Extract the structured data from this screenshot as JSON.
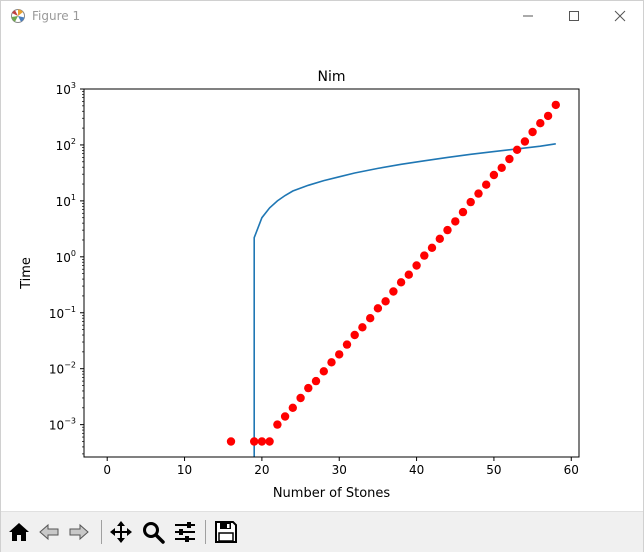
{
  "window": {
    "title": "Figure 1",
    "icons": [
      "matplotlib-logo-icon",
      "minimize-icon",
      "maximize-icon",
      "close-icon"
    ]
  },
  "toolbar": {
    "buttons": [
      {
        "name": "home-button",
        "icon": "home-icon"
      },
      {
        "name": "back-button",
        "icon": "back-arrow-icon"
      },
      {
        "name": "forward-button",
        "icon": "forward-arrow-icon"
      },
      {
        "name": "pan-button",
        "icon": "pan-icon"
      },
      {
        "name": "zoom-button",
        "icon": "zoom-icon"
      },
      {
        "name": "configure-subplots-button",
        "icon": "sliders-icon"
      },
      {
        "name": "save-button",
        "icon": "save-icon"
      }
    ]
  },
  "chart_data": {
    "type": "line+scatter",
    "title": "Nim",
    "xlabel": "Number of Stones",
    "ylabel": "Time",
    "xlim": [
      -3,
      61
    ],
    "ylim": [
      0.000264,
      1000
    ],
    "yscale": "log",
    "xticks": [
      0,
      10,
      20,
      30,
      40,
      50,
      60
    ],
    "yticks": [
      {
        "value": 0.001,
        "base": "10",
        "exp": "−3"
      },
      {
        "value": 0.01,
        "base": "10",
        "exp": "−2"
      },
      {
        "value": 0.1,
        "base": "10",
        "exp": "−1"
      },
      {
        "value": 1,
        "base": "10",
        "exp": "0"
      },
      {
        "value": 10,
        "base": "10",
        "exp": "1"
      },
      {
        "value": 100,
        "base": "10",
        "exp": "2"
      },
      {
        "value": 1000,
        "base": "10",
        "exp": "3"
      }
    ],
    "line_color": "#1f77b4",
    "marker_color": "#ff0000",
    "series": [
      {
        "kind": "line",
        "x": [
          19,
          19,
          20,
          21,
          22,
          23,
          24,
          26,
          28,
          30,
          32,
          35,
          38,
          41,
          44,
          47,
          50,
          53,
          56,
          58
        ],
        "y": [
          0.00026,
          2.2,
          5.0,
          7.5,
          10.0,
          12.5,
          15.0,
          19.0,
          23.0,
          27.0,
          31.5,
          38.0,
          45.0,
          52.0,
          60.0,
          68.0,
          76.0,
          85.0,
          95.0,
          105.0
        ]
      },
      {
        "kind": "scatter",
        "x": [
          16,
          19,
          20,
          21,
          22,
          23,
          24,
          25,
          26,
          27,
          28,
          29,
          30,
          31,
          32,
          33,
          34,
          35,
          36,
          37,
          38,
          39,
          40,
          41,
          42,
          43,
          44,
          45,
          46,
          47,
          48,
          49,
          50,
          51,
          52,
          53,
          54,
          55,
          56,
          57,
          58
        ],
        "y": [
          0.0005,
          0.0005,
          0.0005,
          0.0005,
          0.001,
          0.0014,
          0.002,
          0.003,
          0.0045,
          0.006,
          0.009,
          0.013,
          0.018,
          0.027,
          0.04,
          0.055,
          0.08,
          0.12,
          0.16,
          0.24,
          0.35,
          0.48,
          0.7,
          1.05,
          1.45,
          2.1,
          3.0,
          4.3,
          6.3,
          9.5,
          13.5,
          19.5,
          29.0,
          39.0,
          56.0,
          82.0,
          115.0,
          170.0,
          245.0,
          330.0,
          520.0
        ]
      }
    ]
  }
}
